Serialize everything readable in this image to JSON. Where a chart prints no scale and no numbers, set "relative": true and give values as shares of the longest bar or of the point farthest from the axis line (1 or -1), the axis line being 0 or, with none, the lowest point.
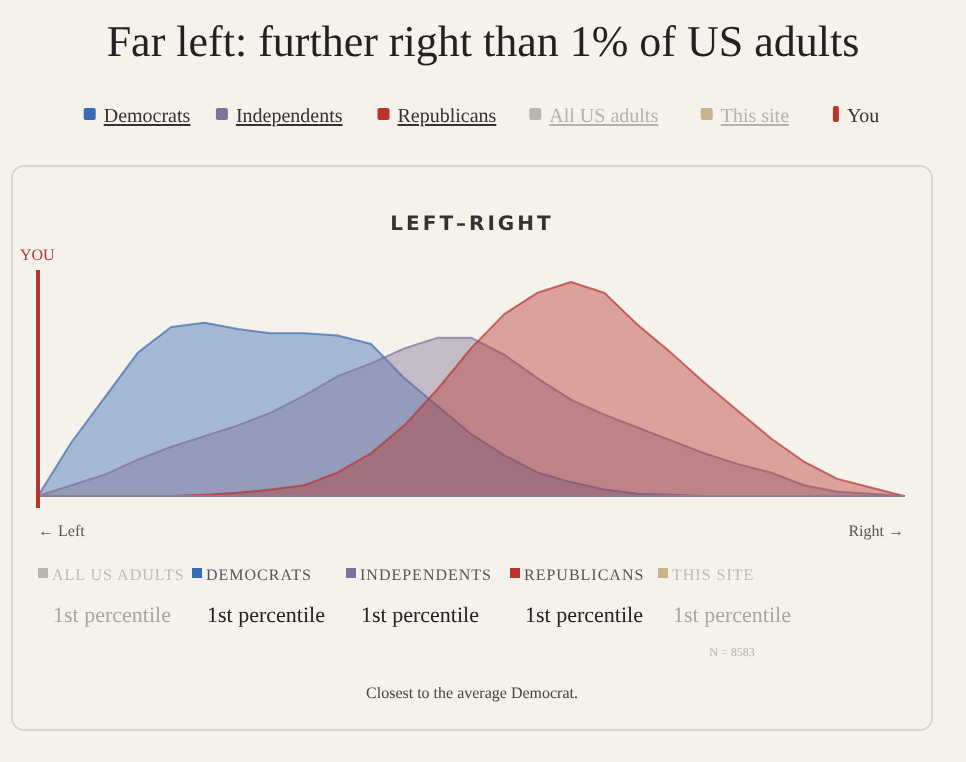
{
  "chart_data": {
    "type": "area",
    "title": "Far left: further right than 1% of US adults",
    "subtitle": "LEFT–RIGHT",
    "relative": true,
    "legend": "top",
    "categories": [
      null,
      null,
      null,
      null,
      null,
      null,
      null,
      null,
      null,
      null,
      null,
      null,
      null,
      null,
      null,
      null,
      null,
      null,
      null,
      null,
      null,
      null,
      null,
      null,
      null,
      null,
      null
    ],
    "series": [
      {
        "name": "Democrats",
        "color": "#3a6bb5",
        "values": [
          0,
          0.25,
          0.46,
          0.67,
          0.79,
          0.81,
          0.78,
          0.76,
          0.76,
          0.75,
          0.71,
          0.55,
          0.42,
          0.29,
          0.19,
          0.11,
          0.065,
          0.03,
          0.01,
          0.006,
          0,
          0,
          0,
          0,
          0,
          0,
          0
        ]
      },
      {
        "name": "Independents",
        "color": "#7e7296",
        "values": [
          0,
          0.05,
          0.1,
          0.17,
          0.23,
          0.28,
          0.33,
          0.39,
          0.47,
          0.56,
          0.62,
          0.69,
          0.74,
          0.74,
          0.66,
          0.55,
          0.45,
          0.38,
          0.32,
          0.26,
          0.2,
          0.15,
          0.11,
          0.05,
          0.02,
          0.01,
          0
        ]
      },
      {
        "name": "Republicans",
        "color": "#b8352e",
        "values": [
          0,
          0,
          0,
          0,
          0,
          0.006,
          0.015,
          0.03,
          0.05,
          0.11,
          0.2,
          0.33,
          0.5,
          0.69,
          0.85,
          0.95,
          1,
          0.95,
          0.8,
          0.67,
          0.53,
          0.4,
          0.27,
          0.16,
          0.08,
          0.04,
          0
        ]
      },
      {
        "name": "All US adults",
        "color": "#b9b6b2",
        "values": [
          null,
          null,
          null,
          null,
          null,
          null,
          null,
          null,
          null,
          null,
          null,
          null,
          null,
          null,
          null,
          null,
          null,
          null,
          null,
          null,
          null,
          null,
          null,
          null,
          null,
          null,
          null
        ]
      },
      {
        "name": "This site",
        "color": "#c9b48a",
        "values": [
          null,
          null,
          null,
          null,
          null,
          null,
          null,
          null,
          null,
          null,
          null,
          null,
          null,
          null,
          null,
          null,
          null,
          null,
          null,
          null,
          null,
          null,
          null,
          null,
          null,
          null,
          null
        ]
      },
      {
        "name": "You",
        "type": "line",
        "color": "#b8352e",
        "values": [
          null,
          null,
          null,
          null,
          null,
          null,
          null,
          null,
          null,
          null,
          null,
          null,
          null,
          null,
          null,
          null,
          null,
          null,
          null,
          null,
          null,
          null,
          null,
          null,
          null,
          null,
          null
        ]
      }
    ],
    "annotations": [
      "ALL US ADULTS",
      "DEMOCRATS",
      "INDEPENDENTS",
      "REPUBLICANS",
      "THIS SITE",
      "1st percentile",
      "1st percentile",
      "1st percentile",
      "1st percentile",
      "1st percentile",
      "N = 8583",
      "Closest to the average Democrat.",
      "YOU",
      "← Left",
      "Right →"
    ]
  }
}
